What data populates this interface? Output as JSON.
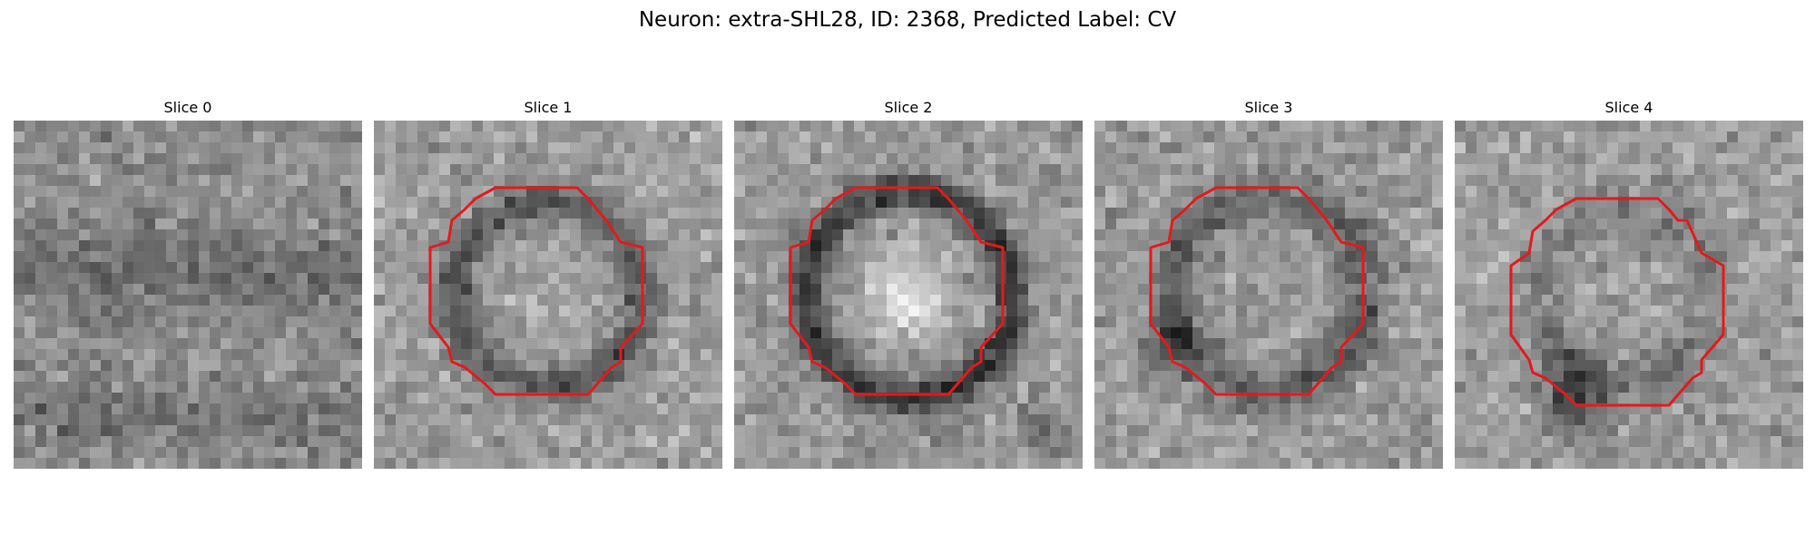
{
  "figure": {
    "title": "Neuron: extra-SHL28, ID: 2368, Predicted Label: CV"
  },
  "image_grid": {
    "cells": 32,
    "colormap": "grayscale",
    "roi_outline_color": "#e31a1c"
  },
  "panels": [
    {
      "title": "Slice 0",
      "has_roi_outline": false,
      "seed": 11,
      "pattern": "diffuse"
    },
    {
      "title": "Slice 1",
      "has_roi_outline": true,
      "seed": 23,
      "pattern": "dark-ring"
    },
    {
      "title": "Slice 2",
      "has_roi_outline": true,
      "seed": 37,
      "pattern": "bright-center-dark-ring"
    },
    {
      "title": "Slice 3",
      "has_roi_outline": true,
      "seed": 41,
      "pattern": "mottled-ring"
    },
    {
      "title": "Slice 4",
      "has_roi_outline": true,
      "seed": 53,
      "pattern": "faint-ring-lower-shadow"
    }
  ]
}
